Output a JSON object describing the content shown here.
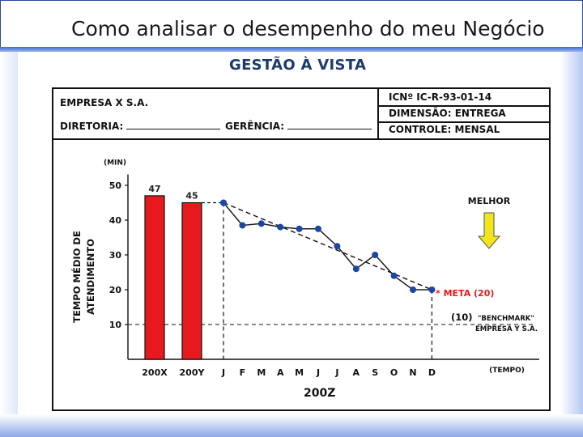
{
  "slide": {
    "title": "Como analisar o desempenho do meu Negócio",
    "heading": "GESTÃO À VISTA"
  },
  "header": {
    "company": "EMPRESA X S.A.",
    "directorate": "DIRETORIA:",
    "management": "GERÊNCIA:",
    "icn": "ICNº IC-R-93-01-14",
    "dimension": "DIMENSÃO: ENTREGA",
    "control": "CONTROLE: MENSAL"
  },
  "colors": {
    "bar": "#e8191c",
    "line": "#1a1a1a",
    "marker": "#1a46a5",
    "meta": "#e8191c",
    "arrow": "#f2e51e"
  },
  "chart_data": {
    "type": "bar+line",
    "ylabel": [
      "TEMPO MÉDIO DE",
      "ATENDIMENTO"
    ],
    "yunit": "(MIN)",
    "xunit": "(TEMPO)",
    "xgroup_label": "200Z",
    "ylim": [
      0,
      55
    ],
    "yticks": [
      10,
      20,
      30,
      40,
      50
    ],
    "bars": [
      {
        "label": "200X",
        "value": 47
      },
      {
        "label": "200Y",
        "value": 45
      }
    ],
    "months": [
      "J",
      "F",
      "M",
      "A",
      "M",
      "J",
      "J",
      "A",
      "S",
      "O",
      "N",
      "D"
    ],
    "monthly_values": [
      45,
      38.5,
      39,
      38,
      37.5,
      37.5,
      32.5,
      26,
      30,
      24,
      20,
      20
    ],
    "trend": {
      "start": 45,
      "end": 20
    },
    "meta": {
      "label": "* META (20)",
      "value": 20
    },
    "benchmark": {
      "label_value": "(10)",
      "label_line1": "\"BENCHMARK\"",
      "label_line2": "EMPRESA Y S.A.",
      "value": 10
    },
    "better_label": "MELHOR"
  }
}
